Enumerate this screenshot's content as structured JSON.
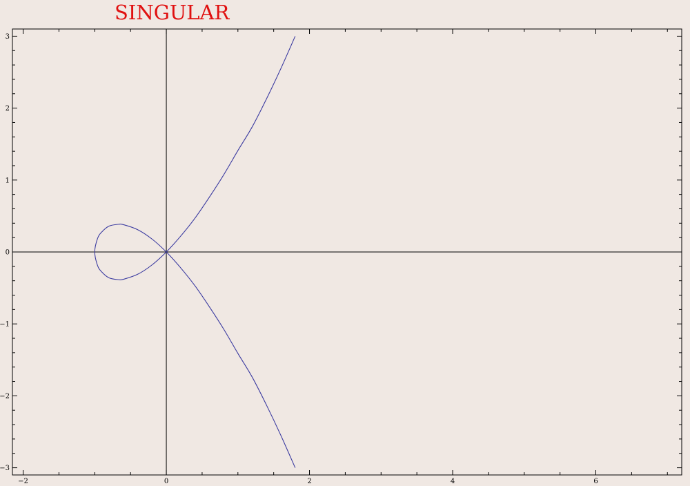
{
  "title": "SINGULAR",
  "colors": {
    "title": "#e01010",
    "curve": "#3a3aa0",
    "axes": "#000000",
    "background": "#f0e8e3"
  },
  "chart_data": {
    "type": "line",
    "title": "SINGULAR",
    "xlabel": "",
    "ylabel": "",
    "xlim": [
      -2.15,
      7.2
    ],
    "ylim": [
      -3.1,
      3.1
    ],
    "x_ticks": [
      -2,
      0,
      2,
      4,
      6
    ],
    "x_tick_labels": [
      "−2",
      "0",
      "2",
      "4",
      "6"
    ],
    "y_ticks": [
      -3,
      -2,
      -1,
      0,
      1,
      2,
      3
    ],
    "y_tick_labels": [
      "−3",
      "−2",
      "−1",
      "0",
      "1",
      "2",
      "3"
    ],
    "grid": false,
    "series": [
      {
        "x": [
          1.8,
          1.6,
          1.4,
          1.2,
          1.0,
          0.8,
          0.6,
          0.4,
          0.2,
          0.0,
          -0.2,
          -0.4,
          -0.6,
          -0.667,
          -0.8,
          -0.9,
          -0.96,
          -1.0,
          -0.96,
          -0.9,
          -0.8,
          -0.667,
          -0.6,
          -0.4,
          -0.2,
          0.0,
          0.2,
          0.4,
          0.6,
          0.8,
          1.0,
          1.2,
          1.4,
          1.6,
          1.8
        ],
        "y": [
          -3.0,
          -2.55,
          -2.13,
          -1.74,
          -1.41,
          -1.07,
          -0.76,
          -0.47,
          -0.22,
          0.0,
          0.18,
          0.31,
          0.38,
          0.385,
          0.36,
          0.28,
          0.19,
          0.0,
          -0.19,
          -0.28,
          -0.36,
          -0.385,
          -0.38,
          -0.31,
          -0.18,
          0.0,
          0.22,
          0.47,
          0.76,
          1.07,
          1.41,
          1.74,
          2.13,
          2.55,
          3.0
        ]
      }
    ]
  }
}
